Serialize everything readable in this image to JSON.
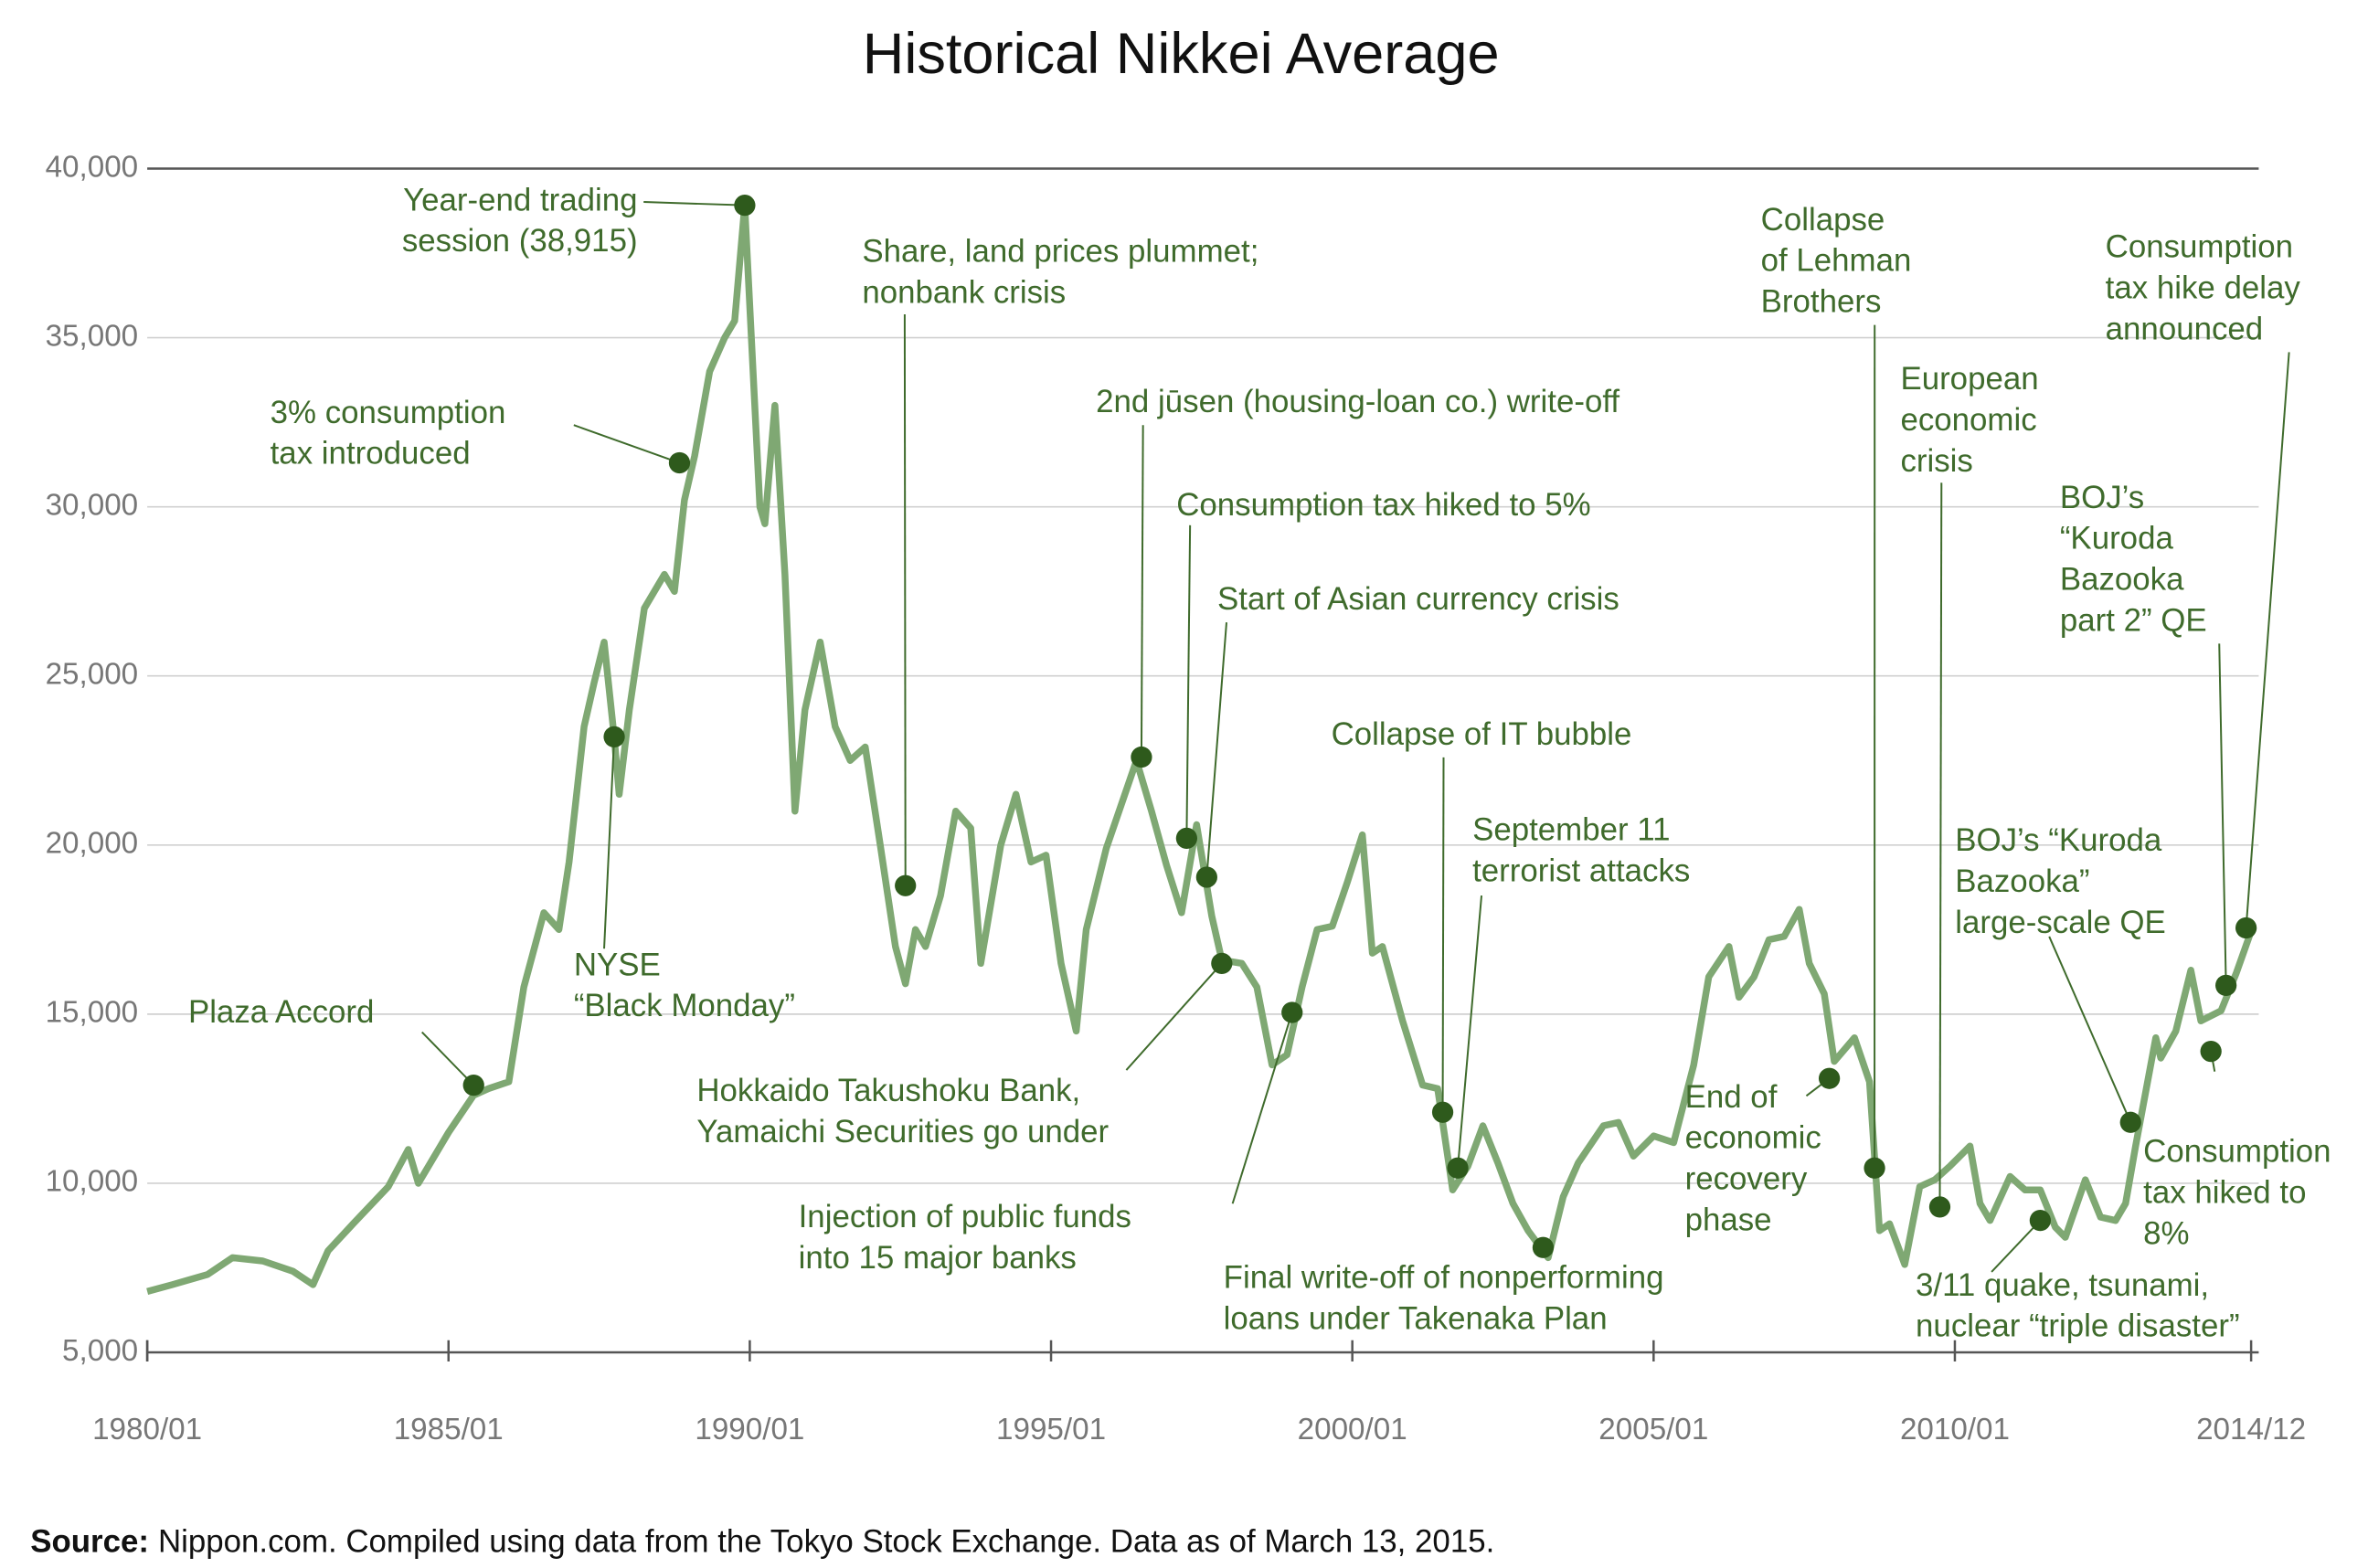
{
  "chart_data": {
    "type": "line",
    "title": "Historical Nikkei Average",
    "color": "#7fa873",
    "dot_color": "#2e5a1c",
    "x": [
      "1980/01",
      "1980/06",
      "1981/01",
      "1981/06",
      "1981/12",
      "1982/06",
      "1982/10",
      "1983/01",
      "1983/06",
      "1984/01",
      "1984/05",
      "1984/07",
      "1985/01",
      "1985/06",
      "1985/09",
      "1986/01",
      "1986/04",
      "1986/08",
      "1986/11",
      "1987/01",
      "1987/04",
      "1987/06",
      "1987/08",
      "1987/10",
      "1987/11",
      "1988/01",
      "1988/04",
      "1988/08",
      "1988/10",
      "1988/12",
      "1989/02",
      "1989/05",
      "1989/08",
      "1989/10",
      "1989/12",
      "1990/03",
      "1990/04",
      "1990/06",
      "1990/08",
      "1990/10",
      "1990/12",
      "1991/03",
      "1991/06",
      "1991/09",
      "1991/12",
      "1992/03",
      "1992/06",
      "1992/08",
      "1992/10",
      "1992/12",
      "1993/03",
      "1993/06",
      "1993/09",
      "1993/11",
      "1994/03",
      "1994/06",
      "1994/09",
      "1994/12",
      "1995/03",
      "1995/06",
      "1995/08",
      "1995/12",
      "1996/06",
      "1996/09",
      "1996/12",
      "1997/03",
      "1997/06",
      "1997/09",
      "1997/11",
      "1998/03",
      "1998/06",
      "1998/09",
      "1998/12",
      "1999/03",
      "1999/06",
      "1999/09",
      "1999/12",
      "2000/03",
      "2000/05",
      "2000/07",
      "2000/11",
      "2001/03",
      "2001/06",
      "2001/09",
      "2001/12",
      "2002/03",
      "2002/06",
      "2002/09",
      "2002/12",
      "2003/04",
      "2003/07",
      "2003/10",
      "2004/03",
      "2004/06",
      "2004/09",
      "2005/01",
      "2005/05",
      "2005/09",
      "2005/12",
      "2006/04",
      "2006/06",
      "2006/09",
      "2006/12",
      "2007/03",
      "2007/06",
      "2007/08",
      "2007/11",
      "2008/01",
      "2008/05",
      "2008/08",
      "2008/10",
      "2008/12",
      "2009/03",
      "2009/06",
      "2009/09",
      "2009/12",
      "2010/04",
      "2010/06",
      "2010/08",
      "2010/12",
      "2011/03",
      "2011/06",
      "2011/09",
      "2011/11",
      "2012/03",
      "2012/06",
      "2012/09",
      "2012/11",
      "2013/01",
      "2013/05",
      "2013/06",
      "2013/09",
      "2013/12",
      "2014/02",
      "2014/06",
      "2014/09",
      "2014/12"
    ],
    "values": [
      6800,
      7000,
      7300,
      7800,
      7700,
      7400,
      7000,
      8000,
      8800,
      9900,
      11000,
      10000,
      11500,
      12600,
      12800,
      13000,
      15800,
      18000,
      17500,
      19500,
      23500,
      24800,
      26000,
      23200,
      21500,
      24000,
      27000,
      28000,
      27500,
      30200,
      31500,
      34000,
      35000,
      35500,
      38915,
      30000,
      29500,
      33000,
      28000,
      21000,
      24000,
      26000,
      23500,
      22500,
      22900,
      20000,
      17000,
      15900,
      17500,
      17000,
      18500,
      21000,
      20500,
      16500,
      20000,
      21500,
      19500,
      19700,
      16500,
      14500,
      17500,
      19900,
      22500,
      21000,
      19400,
      18000,
      20600,
      17900,
      16600,
      16500,
      15800,
      13500,
      13800,
      15800,
      17500,
      17600,
      18900,
      20300,
      16800,
      17000,
      14800,
      12900,
      12800,
      9800,
      10500,
      11700,
      10600,
      9400,
      8600,
      7800,
      9600,
      10600,
      11700,
      11800,
      10800,
      11400,
      11200,
      13500,
      16100,
      17000,
      15500,
      16100,
      17200,
      17300,
      18100,
      16500,
      15600,
      13600,
      14300,
      13000,
      8600,
      8800,
      7600,
      9900,
      10100,
      10500,
      11100,
      9400,
      8900,
      10200,
      9800,
      9800,
      8700,
      8400,
      10100,
      9000,
      8900,
      9400,
      11100,
      14300,
      13700,
      14500,
      16300,
      14800,
      15100,
      16200,
      17450
    ],
    "ylim": [
      5000,
      40000
    ],
    "yticks": [
      {
        "value": 5000,
        "label": "5,000"
      },
      {
        "value": 10000,
        "label": "10,000"
      },
      {
        "value": 15000,
        "label": "15,000"
      },
      {
        "value": 20000,
        "label": "20,000"
      },
      {
        "value": 25000,
        "label": "25,000"
      },
      {
        "value": 30000,
        "label": "30,000"
      },
      {
        "value": 35000,
        "label": "35,000"
      },
      {
        "value": 40000,
        "label": "40,000"
      }
    ],
    "xticks": [
      "1980/01",
      "1985/01",
      "1990/01",
      "1995/01",
      "2000/01",
      "2005/01",
      "2010/01",
      "2014/12"
    ],
    "grid": true,
    "annotations": [
      {
        "lines": [
          "Plaza Accord"
        ],
        "x": "1985/06",
        "y": 12900
      },
      {
        "lines": [
          "NYSE",
          "“Black Monday”"
        ],
        "x": "1987/10",
        "y": 23200
      },
      {
        "lines": [
          "3% consumption",
          "tax introduced"
        ],
        "x": "1988/11",
        "y": 31300
      },
      {
        "lines": [
          "Year-end trading",
          "session (38,915)"
        ],
        "x": "1989/12",
        "y": 38915
      },
      {
        "lines": [
          "Share, land prices plummet;",
          "nonbank crisis"
        ],
        "x": "1992/08",
        "y": 18800
      },
      {
        "lines": [
          "2nd jūsen (housing-loan co.) write-off"
        ],
        "x": "1996/07",
        "y": 22600
      },
      {
        "lines": [
          "Consumption tax hiked to 5%"
        ],
        "x": "1997/04",
        "y": 20200
      },
      {
        "lines": [
          "Start of Asian currency crisis"
        ],
        "x": "1997/08",
        "y": 19050
      },
      {
        "lines": [
          "Hokkaido Takushoku Bank,",
          "Yamaichi Securities go under"
        ],
        "x": "1997/11",
        "y": 16500
      },
      {
        "lines": [
          "Injection of public funds",
          "into 15 major banks"
        ],
        "x": "1999/01",
        "y": 15050
      },
      {
        "lines": [
          "Collapse of IT bubble"
        ],
        "x": "2001/07",
        "y": 12100
      },
      {
        "lines": [
          "September 11",
          "terrorist attacks"
        ],
        "x": "2001/10",
        "y": 10450
      },
      {
        "lines": [
          "Final write-off of nonperforming",
          "loans under Takenaka Plan"
        ],
        "x": "2003/03",
        "y": 8100
      },
      {
        "lines": [
          "End of",
          "economic",
          "recovery",
          "phase"
        ],
        "x": "2007/12",
        "y": 13100
      },
      {
        "lines": [
          "Collapse",
          "of Lehman",
          "Brothers"
        ],
        "x": "2008/09",
        "y": 10450
      },
      {
        "lines": [
          "European",
          "economic",
          "crisis"
        ],
        "x": "2009/10",
        "y": 9300
      },
      {
        "lines": [
          "3/11 quake, tsunami,",
          "nuclear “triple disaster”"
        ],
        "x": "2011/06",
        "y": 8900
      },
      {
        "lines": [
          "BOJ’s “Kuroda",
          "Bazooka”",
          "large-scale QE"
        ],
        "x": "2012/12",
        "y": 11800
      },
      {
        "lines": [
          "BOJ’s",
          "“Kuroda",
          "Bazooka",
          "part 2” QE"
        ],
        "x": "2014/07",
        "y": 15850
      },
      {
        "lines": [
          "Consumption",
          "tax hiked to",
          "8%"
        ],
        "x": "2014/04",
        "y": 13900
      },
      {
        "lines": [
          "Consumption",
          "tax hike delay",
          "announced"
        ],
        "x": "2014/11",
        "y": 17550
      }
    ],
    "source_label": "Source:",
    "source_text": "Nippon.com. Compiled using data from the Tokyo Stock Exchange. Data as of March 13, 2015."
  }
}
